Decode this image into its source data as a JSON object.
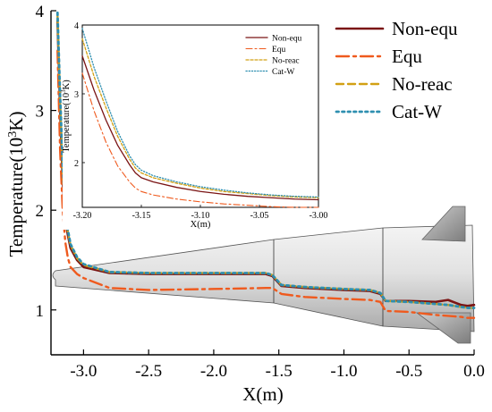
{
  "colors": {
    "non_equ": "#7a1414",
    "equ": "#ef5a1e",
    "no_reac": "#d2a014",
    "cat_w": "#2e8fb0",
    "aircraft_fill": "#d8d8d8",
    "aircraft_edge": "#555555"
  },
  "chart_data": [
    {
      "type": "line",
      "title": "",
      "xlabel": "X(m)",
      "ylabel_main": "Temperature(10",
      "ylabel_sup": "3",
      "ylabel_tail": "K)",
      "xlim": [
        -3.25,
        0.0
      ],
      "ylim": [
        0.55,
        4.0
      ],
      "x_ticks": [
        -3.0,
        -2.5,
        -2.0,
        -1.5,
        -1.0,
        -0.5,
        0.0
      ],
      "x_tick_labels": [
        "-3.0",
        "-2.5",
        "-2.0",
        "-1.5",
        "-1.0",
        "-0.5",
        "0.0"
      ],
      "y_ticks": [
        1,
        2,
        3,
        4
      ],
      "y_tick_labels": [
        "1",
        "2",
        "3",
        "4"
      ],
      "legend_position": "top-right",
      "series": [
        {
          "name": "Non-equ",
          "style": "solid",
          "x": [
            -3.2,
            -3.18,
            -3.16,
            -3.14,
            -3.12,
            -3.1,
            -3.05,
            -3.0,
            -2.8,
            -2.5,
            -2.0,
            -1.6,
            -1.55,
            -1.48,
            -1.3,
            -1.0,
            -0.8,
            -0.72,
            -0.68,
            -0.5,
            -0.3,
            -0.2,
            -0.1,
            -0.05,
            0.0
          ],
          "y": [
            3.9,
            3.0,
            2.3,
            1.9,
            1.75,
            1.62,
            1.5,
            1.43,
            1.37,
            1.36,
            1.36,
            1.36,
            1.34,
            1.24,
            1.22,
            1.2,
            1.19,
            1.16,
            1.09,
            1.09,
            1.08,
            1.1,
            1.05,
            1.04,
            1.05
          ]
        },
        {
          "name": "Equ",
          "style": "dashdot",
          "x": [
            -3.2,
            -3.18,
            -3.16,
            -3.14,
            -3.12,
            -3.1,
            -3.05,
            -3.0,
            -2.8,
            -2.5,
            -2.0,
            -1.6,
            -1.55,
            -1.48,
            -1.3,
            -1.0,
            -0.8,
            -0.72,
            -0.68,
            -0.5,
            -0.3,
            -0.2,
            -0.1,
            -0.05,
            0.0
          ],
          "y": [
            3.6,
            2.6,
            2.0,
            1.68,
            1.52,
            1.43,
            1.36,
            1.32,
            1.22,
            1.2,
            1.21,
            1.22,
            1.22,
            1.16,
            1.13,
            1.11,
            1.1,
            1.08,
            0.99,
            0.98,
            0.95,
            0.94,
            0.93,
            0.92,
            0.92
          ]
        },
        {
          "name": "No-reac",
          "style": "dashed",
          "x": [
            -3.2,
            -3.18,
            -3.16,
            -3.14,
            -3.12,
            -3.1,
            -3.05,
            -3.0,
            -2.8,
            -2.5,
            -2.0,
            -1.6,
            -1.55,
            -1.48,
            -1.3,
            -1.0,
            -0.8,
            -0.72,
            -0.68,
            -0.5,
            -0.3,
            -0.2,
            -0.1,
            -0.05,
            0.0
          ],
          "y": [
            3.95,
            3.1,
            2.4,
            1.95,
            1.78,
            1.65,
            1.52,
            1.45,
            1.38,
            1.37,
            1.37,
            1.37,
            1.35,
            1.25,
            1.23,
            1.21,
            1.2,
            1.17,
            1.09,
            1.08,
            1.06,
            1.05,
            1.03,
            1.02,
            1.02
          ]
        },
        {
          "name": "Cat-W",
          "style": "dotted",
          "x": [
            -3.2,
            -3.18,
            -3.16,
            -3.14,
            -3.12,
            -3.1,
            -3.05,
            -3.0,
            -2.8,
            -2.5,
            -2.0,
            -1.6,
            -1.55,
            -1.48,
            -1.3,
            -1.0,
            -0.8,
            -0.72,
            -0.68,
            -0.5,
            -0.3,
            -0.2,
            -0.1,
            -0.05,
            0.0
          ],
          "y": [
            3.98,
            3.15,
            2.45,
            1.97,
            1.8,
            1.66,
            1.53,
            1.46,
            1.38,
            1.37,
            1.37,
            1.37,
            1.35,
            1.25,
            1.23,
            1.21,
            1.2,
            1.17,
            1.09,
            1.08,
            1.06,
            1.05,
            1.03,
            1.02,
            1.02
          ]
        }
      ]
    },
    {
      "type": "line",
      "title": "",
      "xlabel": "X(m)",
      "ylabel_main": "Temperature(10",
      "ylabel_sup": "3",
      "ylabel_tail": "K)",
      "xlim": [
        -3.2,
        -3.0
      ],
      "ylim": [
        1.35,
        4.0
      ],
      "x_ticks": [
        -3.2,
        -3.15,
        -3.1,
        -3.05,
        -3.0
      ],
      "x_tick_labels": [
        "-3.20",
        "-3.15",
        "-3.10",
        "-3.05",
        "-3.00"
      ],
      "y_ticks": [
        2,
        3,
        4
      ],
      "y_tick_labels": [
        "2",
        "3",
        "4"
      ],
      "legend_position": "top-right",
      "series": [
        {
          "name": "Non-equ",
          "style": "solid",
          "x": [
            -3.2,
            -3.19,
            -3.18,
            -3.17,
            -3.16,
            -3.155,
            -3.15,
            -3.14,
            -3.12,
            -3.1,
            -3.08,
            -3.06,
            -3.04,
            -3.02,
            -3.0
          ],
          "y": [
            3.55,
            3.05,
            2.62,
            2.25,
            1.97,
            1.85,
            1.78,
            1.72,
            1.64,
            1.58,
            1.54,
            1.51,
            1.49,
            1.47,
            1.46
          ]
        },
        {
          "name": "Equ",
          "style": "dashdot",
          "x": [
            -3.2,
            -3.19,
            -3.18,
            -3.17,
            -3.16,
            -3.155,
            -3.15,
            -3.14,
            -3.12,
            -3.1,
            -3.08,
            -3.06,
            -3.04,
            -3.02,
            -3.0
          ],
          "y": [
            3.3,
            2.75,
            2.3,
            1.95,
            1.72,
            1.63,
            1.58,
            1.53,
            1.47,
            1.43,
            1.4,
            1.38,
            1.36,
            1.35,
            1.34
          ]
        },
        {
          "name": "No-reac",
          "style": "dashed",
          "x": [
            -3.2,
            -3.19,
            -3.18,
            -3.17,
            -3.16,
            -3.155,
            -3.15,
            -3.14,
            -3.12,
            -3.1,
            -3.08,
            -3.06,
            -3.04,
            -3.02,
            -3.0
          ],
          "y": [
            3.8,
            3.25,
            2.8,
            2.38,
            2.05,
            1.92,
            1.85,
            1.78,
            1.7,
            1.63,
            1.58,
            1.55,
            1.52,
            1.5,
            1.49
          ]
        },
        {
          "name": "Cat-W",
          "style": "dotted",
          "x": [
            -3.2,
            -3.19,
            -3.18,
            -3.17,
            -3.16,
            -3.155,
            -3.15,
            -3.14,
            -3.12,
            -3.1,
            -3.08,
            -3.06,
            -3.04,
            -3.02,
            -3.0
          ],
          "y": [
            3.95,
            3.38,
            2.9,
            2.45,
            2.1,
            1.97,
            1.89,
            1.81,
            1.72,
            1.65,
            1.6,
            1.56,
            1.53,
            1.51,
            1.5
          ]
        }
      ]
    }
  ]
}
